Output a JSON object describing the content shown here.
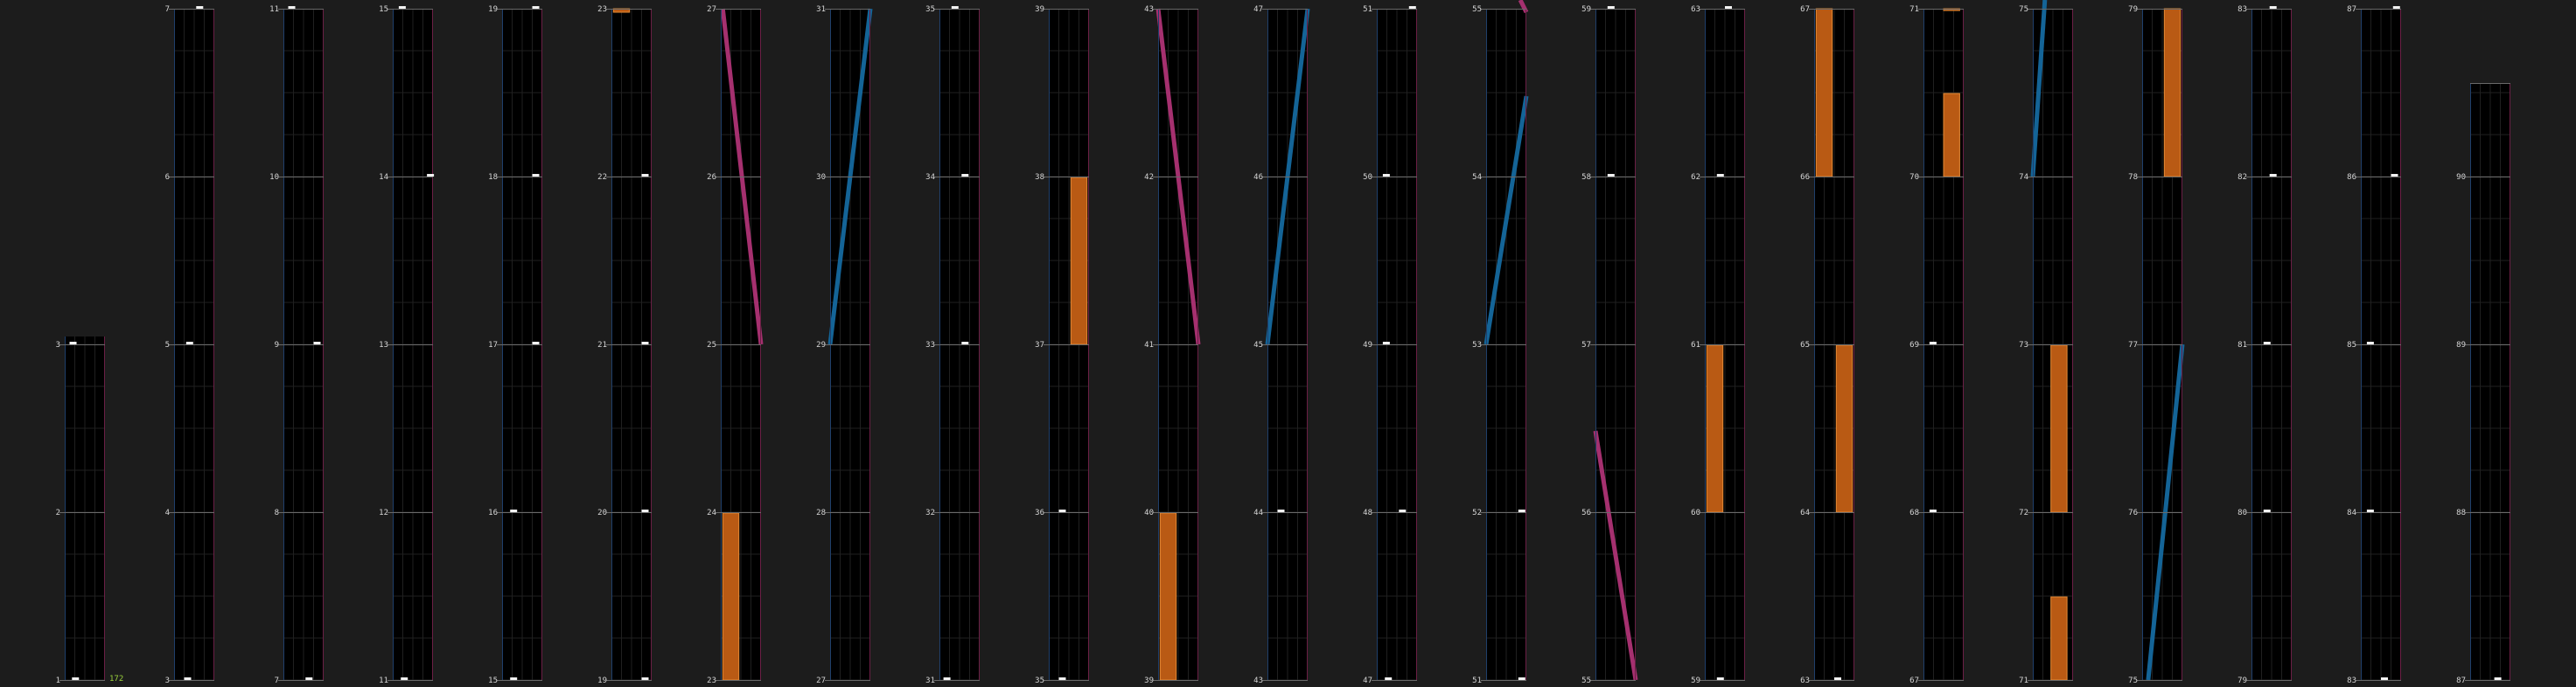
{
  "colors": {
    "background": "#1c1c1c",
    "strip_fill": "#000000",
    "grid": "#202020",
    "row_line": "#6a6a6a",
    "left_edge": "#1f3f6b",
    "right_edge": "#6b1f45",
    "label": "#d6d6d6",
    "marker": "#f2f2f2",
    "pink": "#a5306f",
    "blue": "#146497",
    "orange_fill": "#b95a14",
    "orange_edge": "#e58a35",
    "counter": "#9bd23c"
  },
  "corner_counter": "172",
  "columns": [
    {
      "labels": [
        "1",
        "2",
        "3",
        "",
        ""
      ]
    },
    {
      "labels": [
        "3",
        "4",
        "5",
        "6",
        "7"
      ]
    },
    {
      "labels": [
        "7",
        "8",
        "9",
        "10",
        "11"
      ]
    },
    {
      "labels": [
        "11",
        "12",
        "13",
        "14",
        "15"
      ]
    },
    {
      "labels": [
        "15",
        "16",
        "17",
        "18",
        "19"
      ]
    },
    {
      "labels": [
        "19",
        "20",
        "21",
        "22",
        "23"
      ]
    },
    {
      "labels": [
        "23",
        "24",
        "25",
        "26",
        "27"
      ]
    },
    {
      "labels": [
        "27",
        "28",
        "29",
        "30",
        "31"
      ]
    },
    {
      "labels": [
        "31",
        "32",
        "33",
        "34",
        "35"
      ]
    },
    {
      "labels": [
        "35",
        "36",
        "37",
        "38",
        "39"
      ]
    },
    {
      "labels": [
        "39",
        "40",
        "41",
        "42",
        "43"
      ]
    },
    {
      "labels": [
        "43",
        "44",
        "45",
        "46",
        "47"
      ]
    },
    {
      "labels": [
        "47",
        "48",
        "49",
        "50",
        "51"
      ]
    },
    {
      "labels": [
        "51",
        "52",
        "53",
        "54",
        "55"
      ]
    },
    {
      "labels": [
        "55",
        "56",
        "57",
        "58",
        "59"
      ]
    },
    {
      "labels": [
        "59",
        "60",
        "61",
        "62",
        "63"
      ]
    },
    {
      "labels": [
        "63",
        "64",
        "65",
        "66",
        "67"
      ]
    },
    {
      "labels": [
        "67",
        "68",
        "69",
        "70",
        "71"
      ]
    },
    {
      "labels": [
        "71",
        "72",
        "73",
        "74",
        "75"
      ]
    },
    {
      "labels": [
        "75",
        "76",
        "77",
        "78",
        "79"
      ]
    },
    {
      "labels": [
        "79",
        "80",
        "81",
        "82",
        "83"
      ]
    },
    {
      "labels": [
        "83",
        "84",
        "85",
        "86",
        "87"
      ]
    },
    {
      "labels": [
        "87",
        "88",
        "89",
        "90",
        ""
      ]
    }
  ]
}
